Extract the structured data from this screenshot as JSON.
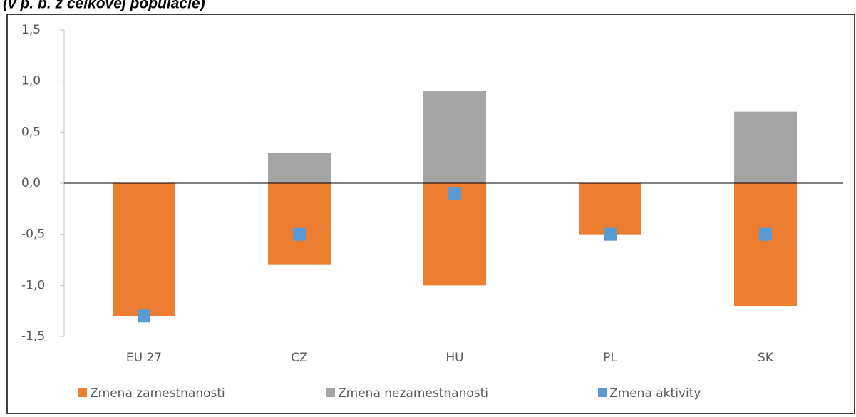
{
  "chart_data": {
    "type": "bar",
    "subtitle": "(v p. b. z celkovej populácie)",
    "categories": [
      "EU 27",
      "CZ",
      "HU",
      "PL",
      "SK"
    ],
    "series": [
      {
        "name": "Zmena zamestnanosti",
        "color": "#ed7d31",
        "kind": "bar",
        "values": [
          -1.3,
          -0.8,
          -1.0,
          -0.5,
          -1.2
        ]
      },
      {
        "name": "Zmena nezamestnanosti",
        "color": "#a5a5a5",
        "kind": "bar",
        "values": [
          0,
          0.3,
          0.9,
          0,
          0.7
        ]
      },
      {
        "name": "Zmena aktivity",
        "color": "#5b9bd5",
        "kind": "marker",
        "values": [
          -1.3,
          -0.5,
          -0.1,
          -0.5,
          -0.5
        ]
      }
    ],
    "ylim": [
      -1.5,
      1.5
    ],
    "yticks": [
      {
        "value": -1.5,
        "label": "-1,5"
      },
      {
        "value": -1.0,
        "label": "-1,0"
      },
      {
        "value": -0.5,
        "label": "-0,5"
      },
      {
        "value": 0,
        "label": "0,0"
      },
      {
        "value": 0.5,
        "label": "0,5"
      },
      {
        "value": 1.0,
        "label": "1,0"
      },
      {
        "value": 1.5,
        "label": "1,5"
      }
    ],
    "legend": "bottom"
  }
}
